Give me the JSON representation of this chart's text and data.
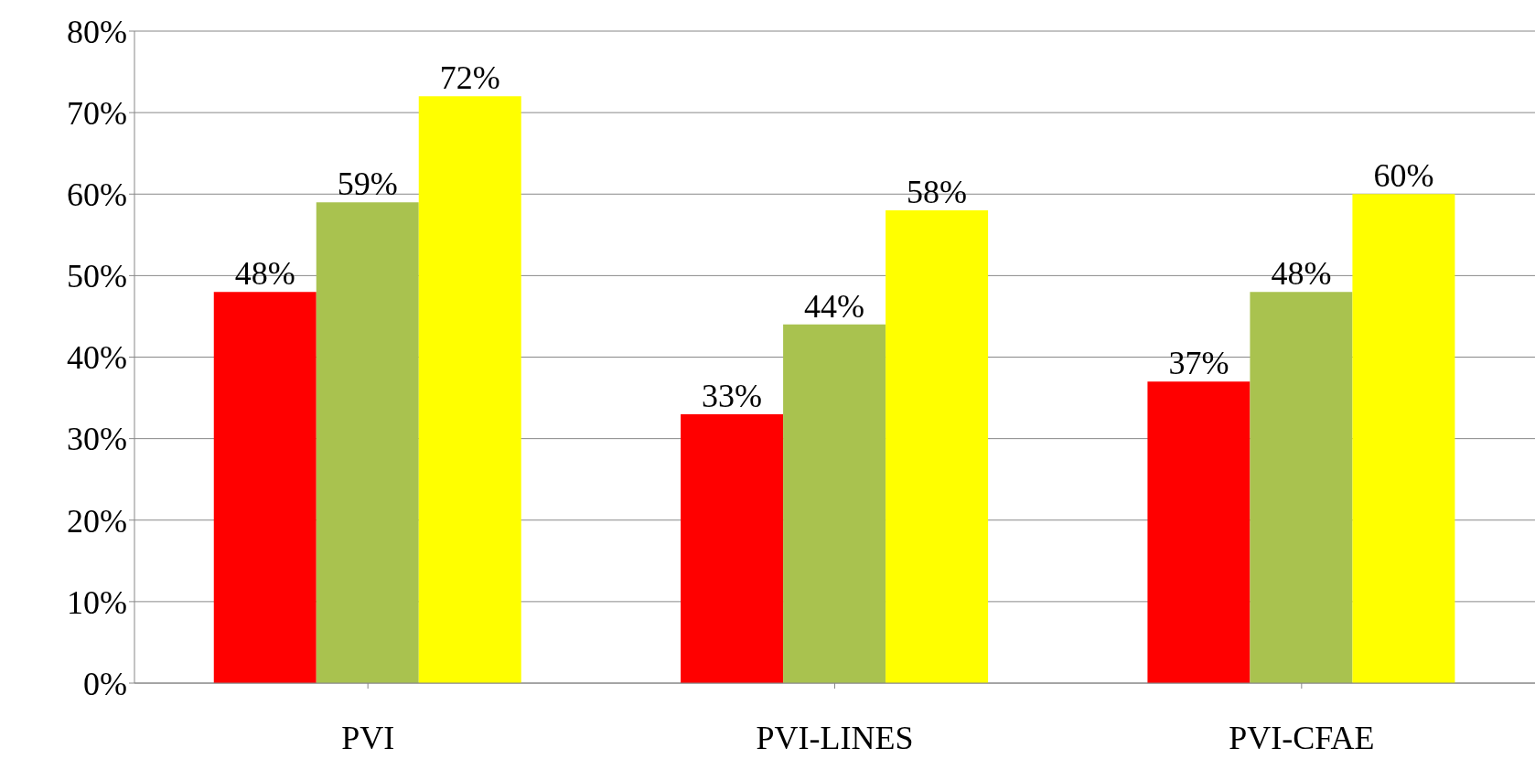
{
  "chart_data": {
    "type": "bar",
    "categories": [
      "PVI",
      "PVI-LINES",
      "PVI-CFAE"
    ],
    "series": [
      {
        "color": "#ff0000",
        "values": [
          48,
          33,
          37
        ],
        "value_labels": [
          "48%",
          "33%",
          "37%"
        ]
      },
      {
        "color": "#a9c24f",
        "values": [
          59,
          44,
          48
        ],
        "value_labels": [
          "59%",
          "44%",
          "48%"
        ]
      },
      {
        "color": "#ffff00",
        "values": [
          72,
          58,
          60
        ],
        "value_labels": [
          "72%",
          "58%",
          "60%"
        ]
      }
    ],
    "ylim": [
      0,
      80
    ],
    "yticks": [
      {
        "value": 0,
        "label": "0%"
      },
      {
        "value": 10,
        "label": "10%"
      },
      {
        "value": 20,
        "label": "20%"
      },
      {
        "value": 30,
        "label": "30%"
      },
      {
        "value": 40,
        "label": "40%"
      },
      {
        "value": 50,
        "label": "50%"
      },
      {
        "value": 60,
        "label": "60%"
      },
      {
        "value": 70,
        "label": "70%"
      },
      {
        "value": 80,
        "label": "80%"
      }
    ],
    "grid": "y",
    "legend": false
  }
}
